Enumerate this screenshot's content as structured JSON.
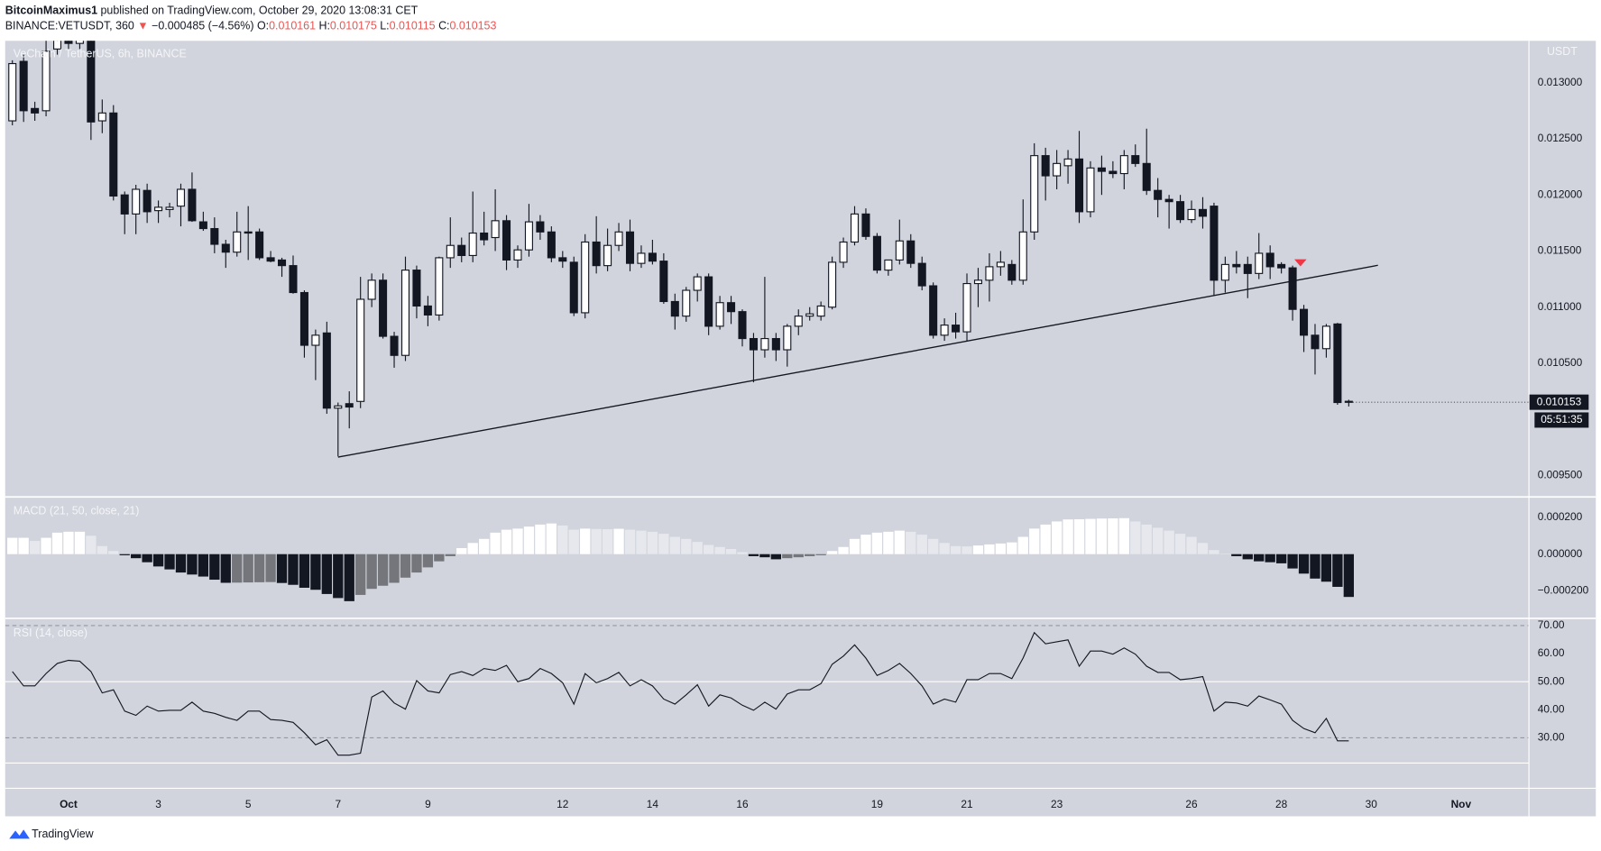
{
  "header": {
    "author": "BitcoinMaximus1",
    "published": "published on TradingView.com, October 29, 2020 13:08:31 CET",
    "symbol": "BINANCE:VETUSDT, 360",
    "change_arrow": "▼",
    "change": "−0.000485 (−4.56%)",
    "ohlc_prefixes": [
      "O:",
      "H:",
      "L:",
      "C:"
    ]
  },
  "footer": {
    "brand": "TradingView"
  },
  "chart_data": [
    {
      "type": "candlestick",
      "title": "VeChain / TetherUS, 6h, BINANCE",
      "axis_label": "USDT",
      "countdown": "05:51:35",
      "up_color": "#ffffff",
      "down_color": "#131722",
      "xlim": [
        -0.64,
        135
      ],
      "ylim": [
        0.009318,
        0.013373
      ],
      "xticks": [
        {
          "value": 5,
          "label": "Oct"
        },
        {
          "value": 13,
          "label": "3"
        },
        {
          "value": 21,
          "label": "5"
        },
        {
          "value": 29,
          "label": "7"
        },
        {
          "value": 37,
          "label": "9"
        },
        {
          "value": 49,
          "label": "12"
        },
        {
          "value": 57,
          "label": "14"
        },
        {
          "value": 65,
          "label": "16"
        },
        {
          "value": 77,
          "label": "19"
        },
        {
          "value": 85,
          "label": "21"
        },
        {
          "value": 93,
          "label": "23"
        },
        {
          "value": 105,
          "label": "26"
        },
        {
          "value": 113,
          "label": "28"
        },
        {
          "value": 121,
          "label": "30"
        },
        {
          "value": 129,
          "label": "Nov"
        }
      ],
      "yticks": [
        {
          "value": 0.0095,
          "label": "0.009500"
        },
        {
          "value": 0.0105,
          "label": "0.010500"
        },
        {
          "value": 0.011,
          "label": "0.011000"
        },
        {
          "value": 0.0115,
          "label": "0.011500"
        },
        {
          "value": 0.012,
          "label": "0.012000"
        },
        {
          "value": 0.0125,
          "label": "0.012500"
        },
        {
          "value": 0.013,
          "label": "0.013000"
        }
      ],
      "trendline": {
        "x": [
          29,
          121.6
        ],
        "y": [
          0.009664,
          0.011373
        ],
        "color": "#131722"
      },
      "marker": {
        "x": 114.7,
        "y": 0.01139,
        "color": "#f23645"
      },
      "ohlc": [
        [
          0.01266,
          0.0132,
          0.01262,
          0.01317
        ],
        [
          0.01319,
          0.01325,
          0.01265,
          0.01275
        ],
        [
          0.01277,
          0.01283,
          0.01266,
          0.01273
        ],
        [
          0.01275,
          0.0134,
          0.0127,
          0.01328
        ],
        [
          0.0133,
          0.01345,
          0.01325,
          0.0134
        ],
        [
          0.0134,
          0.0135,
          0.0133,
          0.01335
        ],
        [
          0.01335,
          0.0135,
          0.0133,
          0.01345
        ],
        [
          0.0134,
          0.01345,
          0.01249,
          0.01265
        ],
        [
          0.01266,
          0.01285,
          0.01255,
          0.01273
        ],
        [
          0.01273,
          0.0128,
          0.01195,
          0.01199
        ],
        [
          0.012,
          0.01203,
          0.01165,
          0.01183
        ],
        [
          0.01183,
          0.01209,
          0.01165,
          0.01205
        ],
        [
          0.01204,
          0.0121,
          0.01175,
          0.01185
        ],
        [
          0.01186,
          0.01195,
          0.01175,
          0.01189
        ],
        [
          0.01187,
          0.01193,
          0.0118,
          0.01189
        ],
        [
          0.0119,
          0.0121,
          0.01172,
          0.01205
        ],
        [
          0.01205,
          0.0122,
          0.01176,
          0.01177
        ],
        [
          0.01176,
          0.01185,
          0.01168,
          0.0117
        ],
        [
          0.0117,
          0.0118,
          0.01148,
          0.01156
        ],
        [
          0.01156,
          0.0116,
          0.01135,
          0.01149
        ],
        [
          0.01149,
          0.01185,
          0.01145,
          0.01167
        ],
        [
          0.01167,
          0.0119,
          0.01142,
          0.01166
        ],
        [
          0.01167,
          0.0117,
          0.01142,
          0.01144
        ],
        [
          0.01144,
          0.0115,
          0.0114,
          0.01141
        ],
        [
          0.01142,
          0.01144,
          0.01127,
          0.01137
        ],
        [
          0.01137,
          0.01146,
          0.01112,
          0.01113
        ],
        [
          0.01113,
          0.01115,
          0.01055,
          0.01066
        ],
        [
          0.01066,
          0.0108,
          0.01035,
          0.01075
        ],
        [
          0.01077,
          0.01087,
          0.01005,
          0.0101
        ],
        [
          0.0101,
          0.01015,
          0.00967,
          0.01012
        ],
        [
          0.01014,
          0.01025,
          0.00992,
          0.01011
        ],
        [
          0.01016,
          0.01127,
          0.0101,
          0.01107
        ],
        [
          0.01107,
          0.0113,
          0.011,
          0.01124
        ],
        [
          0.01124,
          0.0113,
          0.01072,
          0.01074
        ],
        [
          0.01074,
          0.01078,
          0.01046,
          0.01057
        ],
        [
          0.01057,
          0.01145,
          0.01052,
          0.01133
        ],
        [
          0.01133,
          0.01137,
          0.0109,
          0.01101
        ],
        [
          0.01101,
          0.0111,
          0.01083,
          0.01093
        ],
        [
          0.01093,
          0.01145,
          0.01088,
          0.01144
        ],
        [
          0.01144,
          0.0118,
          0.01135,
          0.01155
        ],
        [
          0.01155,
          0.01162,
          0.0114,
          0.01146
        ],
        [
          0.01146,
          0.01203,
          0.0114,
          0.01166
        ],
        [
          0.01166,
          0.01185,
          0.01155,
          0.0116
        ],
        [
          0.01162,
          0.01205,
          0.0115,
          0.01177
        ],
        [
          0.01177,
          0.01182,
          0.01133,
          0.01142
        ],
        [
          0.01142,
          0.01155,
          0.01135,
          0.01151
        ],
        [
          0.01151,
          0.01192,
          0.01145,
          0.01176
        ],
        [
          0.01176,
          0.01182,
          0.0116,
          0.01167
        ],
        [
          0.01167,
          0.01172,
          0.0114,
          0.01144
        ],
        [
          0.01144,
          0.0115,
          0.01135,
          0.01141
        ],
        [
          0.0114,
          0.01145,
          0.01092,
          0.01095
        ],
        [
          0.01095,
          0.01165,
          0.0109,
          0.01158
        ],
        [
          0.01158,
          0.01181,
          0.0113,
          0.01137
        ],
        [
          0.01137,
          0.0117,
          0.01132,
          0.01155
        ],
        [
          0.01155,
          0.01175,
          0.0115,
          0.01167
        ],
        [
          0.01167,
          0.01178,
          0.01132,
          0.01139
        ],
        [
          0.01139,
          0.01155,
          0.01135,
          0.01148
        ],
        [
          0.01148,
          0.0116,
          0.01138,
          0.01141
        ],
        [
          0.01141,
          0.01148,
          0.01103,
          0.01105
        ],
        [
          0.01105,
          0.01112,
          0.0108,
          0.01092
        ],
        [
          0.01092,
          0.01118,
          0.01087,
          0.01115
        ],
        [
          0.01115,
          0.0113,
          0.01105,
          0.01127
        ],
        [
          0.01127,
          0.0113,
          0.01075,
          0.01083
        ],
        [
          0.01083,
          0.0111,
          0.0108,
          0.01104
        ],
        [
          0.01104,
          0.0111,
          0.01085,
          0.01096
        ],
        [
          0.01096,
          0.01098,
          0.01065,
          0.01072
        ],
        [
          0.01072,
          0.01077,
          0.01033,
          0.01062
        ],
        [
          0.01062,
          0.01127,
          0.01055,
          0.01072
        ],
        [
          0.01072,
          0.01077,
          0.01052,
          0.01062
        ],
        [
          0.01062,
          0.01085,
          0.01047,
          0.01083
        ],
        [
          0.01083,
          0.01098,
          0.01075,
          0.01092
        ],
        [
          0.01092,
          0.011,
          0.01088,
          0.01094
        ],
        [
          0.01092,
          0.01105,
          0.01088,
          0.01101
        ],
        [
          0.011,
          0.01145,
          0.01098,
          0.0114
        ],
        [
          0.0114,
          0.01162,
          0.01135,
          0.01158
        ],
        [
          0.01158,
          0.0119,
          0.01155,
          0.01183
        ],
        [
          0.01183,
          0.01188,
          0.0116,
          0.01163
        ],
        [
          0.01163,
          0.01166,
          0.0113,
          0.01133
        ],
        [
          0.01133,
          0.0114,
          0.01128,
          0.01142
        ],
        [
          0.01142,
          0.01178,
          0.01138,
          0.01159
        ],
        [
          0.01159,
          0.01165,
          0.01135,
          0.01139
        ],
        [
          0.01139,
          0.01145,
          0.01115,
          0.01119
        ],
        [
          0.01119,
          0.01122,
          0.01072,
          0.01075
        ],
        [
          0.01075,
          0.0109,
          0.0107,
          0.01084
        ],
        [
          0.01084,
          0.01095,
          0.01072,
          0.01078
        ],
        [
          0.01078,
          0.0113,
          0.0107,
          0.01121
        ],
        [
          0.01121,
          0.01135,
          0.011,
          0.01124
        ],
        [
          0.01124,
          0.01148,
          0.01105,
          0.01136
        ],
        [
          0.01136,
          0.0115,
          0.01128,
          0.0114
        ],
        [
          0.01138,
          0.01142,
          0.0112,
          0.01124
        ],
        [
          0.01124,
          0.01196,
          0.0112,
          0.01167
        ],
        [
          0.01167,
          0.01246,
          0.0116,
          0.01235
        ],
        [
          0.01235,
          0.01242,
          0.01195,
          0.01217
        ],
        [
          0.01217,
          0.0124,
          0.01205,
          0.01228
        ],
        [
          0.01226,
          0.0124,
          0.0121,
          0.01232
        ],
        [
          0.01232,
          0.01257,
          0.01175,
          0.01185
        ],
        [
          0.01185,
          0.0123,
          0.0118,
          0.01224
        ],
        [
          0.01224,
          0.01235,
          0.012,
          0.01221
        ],
        [
          0.01221,
          0.0123,
          0.01215,
          0.01219
        ],
        [
          0.01219,
          0.0124,
          0.01205,
          0.01235
        ],
        [
          0.01235,
          0.01245,
          0.01225,
          0.01228
        ],
        [
          0.01228,
          0.01259,
          0.012,
          0.01204
        ],
        [
          0.01204,
          0.01215,
          0.0118,
          0.01196
        ],
        [
          0.01196,
          0.012,
          0.0117,
          0.01194
        ],
        [
          0.01194,
          0.012,
          0.01175,
          0.01178
        ],
        [
          0.01178,
          0.01195,
          0.01175,
          0.01187
        ],
        [
          0.01187,
          0.01198,
          0.0117,
          0.01181
        ],
        [
          0.0119,
          0.01193,
          0.0111,
          0.01124
        ],
        [
          0.01124,
          0.01145,
          0.01113,
          0.01138
        ],
        [
          0.01138,
          0.0115,
          0.0113,
          0.01136
        ],
        [
          0.01138,
          0.01145,
          0.01108,
          0.0113
        ],
        [
          0.0113,
          0.01166,
          0.01125,
          0.01148
        ],
        [
          0.01148,
          0.01155,
          0.01125,
          0.01136
        ],
        [
          0.01138,
          0.0114,
          0.0113,
          0.01135
        ],
        [
          0.01135,
          0.01137,
          0.01088,
          0.01098
        ],
        [
          0.01098,
          0.01102,
          0.0106,
          0.01075
        ],
        [
          0.01075,
          0.01085,
          0.0104,
          0.01063
        ],
        [
          0.01063,
          0.01085,
          0.01055,
          0.01083
        ],
        [
          0.01085,
          0.01086,
          0.01013,
          0.01015
        ],
        [
          0.010161,
          0.010175,
          0.010115,
          0.010153
        ]
      ]
    },
    {
      "type": "bar",
      "title": "MACD (21, 50, close, 21)",
      "ylim": [
        -0.000344,
        0.000306
      ],
      "yticks": [
        {
          "value": 0.0002,
          "label": "0.000200"
        },
        {
          "value": 0,
          "label": "0.000000"
        },
        {
          "value": -0.0002,
          "label": "−0.000200"
        }
      ],
      "colors": {
        "positive_rising": "#ffffff",
        "positive_falling": "#e6e8ee",
        "negative_falling": "#131722",
        "negative_rising": "#74767c"
      },
      "values": [
        8.9e-05,
        8.9e-05,
        7.2e-05,
        8.9e-05,
        0.000117,
        0.000122,
        0.000122,
        0.0001,
        4.4e-05,
        1.7e-05,
        -6e-06,
        -2.2e-05,
        -4.4e-05,
        -6.7e-05,
        -8.3e-05,
        -0.0001,
        -0.000111,
        -0.000122,
        -0.000139,
        -0.000156,
        -0.000155,
        -0.000154,
        -0.000153,
        -0.000152,
        -0.000157,
        -0.000167,
        -0.000183,
        -0.000194,
        -0.000217,
        -0.000239,
        -0.000256,
        -0.000222,
        -0.000189,
        -0.000172,
        -0.000156,
        -0.000128,
        -0.0001,
        -7.2e-05,
        -3.9e-05,
        -1.1e-05,
        3.3e-05,
        6.1e-05,
        8.3e-05,
        0.000117,
        0.000133,
        0.000139,
        0.00015,
        0.000161,
        0.000167,
        0.000156,
        0.000133,
        0.000139,
        0.000137,
        0.000136,
        0.000138,
        0.000133,
        0.000128,
        0.000122,
        0.000111,
        9.4e-05,
        8.3e-05,
        6.7e-05,
        5e-05,
        3.9e-05,
        2.8e-05,
        1.1e-05,
        -1.1e-05,
        -1.7e-05,
        -2.8e-05,
        -2.2e-05,
        -1.7e-05,
        -1.1e-05,
        -6e-06,
        1.7e-05,
        3.9e-05,
        8.3e-05,
        0.000106,
        0.000117,
        0.000122,
        0.000128,
        0.000122,
        0.000106,
        8.3e-05,
        6.1e-05,
        4.4e-05,
        4.2e-05,
        4.7e-05,
        5.3e-05,
        5.8e-05,
        6.4e-05,
        9.4e-05,
        0.000139,
        0.000161,
        0.000178,
        0.000189,
        0.00019,
        0.000192,
        0.000194,
        0.000195,
        0.000196,
        0.000178,
        0.000161,
        0.000144,
        0.000128,
        0.000111,
        9.4e-05,
        6.1e-05,
        2.2e-05,
        2e-06,
        -1.1e-05,
        -2.8e-05,
        -3.9e-05,
        -4.4e-05,
        -5e-05,
        -7.8e-05,
        -0.000106,
        -0.000133,
        -0.00015,
        -0.000178,
        -0.000233
      ]
    },
    {
      "type": "line",
      "title": "RSI (14, close)",
      "color": "#131722",
      "ylim": [
        12.2,
        72.2
      ],
      "yticks": [
        {
          "value": 70,
          "label": "70.00"
        },
        {
          "value": 60,
          "label": "60.00"
        },
        {
          "value": 50,
          "label": "50.00"
        },
        {
          "value": 40,
          "label": "40.00"
        },
        {
          "value": 30,
          "label": "30.00"
        }
      ],
      "dashed_levels": [
        70,
        30
      ],
      "solid_levels": [
        50,
        21
      ],
      "values": [
        53.6,
        48.5,
        48.5,
        52.9,
        56.5,
        57.6,
        57.3,
        53.6,
        46.0,
        47.1,
        39.5,
        38.0,
        41.3,
        39.5,
        39.8,
        39.8,
        42.7,
        39.5,
        38.7,
        37.3,
        36.2,
        39.5,
        39.5,
        36.5,
        36.2,
        35.5,
        31.8,
        27.5,
        29.3,
        23.8,
        23.8,
        24.5,
        44.5,
        46.7,
        42.4,
        40.2,
        50.4,
        46.7,
        46.0,
        52.5,
        53.6,
        52.2,
        54.7,
        54.0,
        55.8,
        50.0,
        51.1,
        54.7,
        52.9,
        49.6,
        42.0,
        52.9,
        49.6,
        51.1,
        53.3,
        48.5,
        50.7,
        48.5,
        43.8,
        42.0,
        45.3,
        48.9,
        41.3,
        45.3,
        44.2,
        41.6,
        39.8,
        42.7,
        40.2,
        45.6,
        47.1,
        47.1,
        49.3,
        56.2,
        59.1,
        63.1,
        58.4,
        52.2,
        54.0,
        56.5,
        52.9,
        48.5,
        42.0,
        43.8,
        42.7,
        50.7,
        50.7,
        52.9,
        52.9,
        51.1,
        58.4,
        67.5,
        63.5,
        64.2,
        64.9,
        55.5,
        60.9,
        60.9,
        59.8,
        62.0,
        59.8,
        55.5,
        53.3,
        53.3,
        50.7,
        51.1,
        51.8,
        39.5,
        42.7,
        42.4,
        41.3,
        44.9,
        43.5,
        42.0,
        36.2,
        33.3,
        31.8,
        36.9,
        28.9,
        28.9
      ]
    }
  ]
}
